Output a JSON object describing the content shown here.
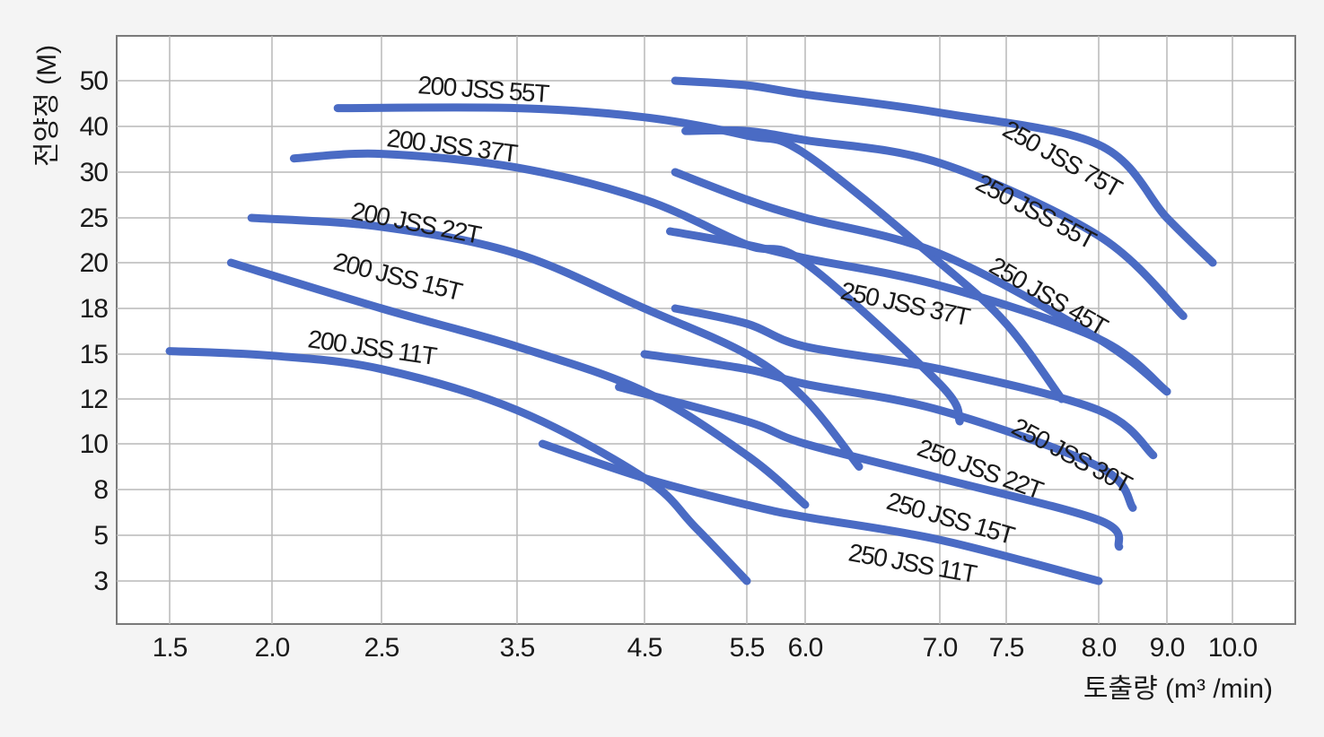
{
  "chart_data": {
    "type": "line",
    "title": "",
    "xlabel": "토출량 (m³ /min)",
    "ylabel": "전양정 (M)",
    "x_ticks": [
      "1.5",
      "2.0",
      "2.5",
      "3.5",
      "4.5",
      "5.5",
      "6.0",
      "7.0",
      "7.5",
      "8.0",
      "9.0",
      "10.0"
    ],
    "y_ticks": [
      "3",
      "5",
      "8",
      "10",
      "12",
      "15",
      "18",
      "20",
      "25",
      "30",
      "40",
      "50"
    ],
    "x_scale": "categorical (tick-indexed, non-linear)",
    "y_scale": "categorical (tick-indexed, non-linear)",
    "grid": true,
    "colors": {
      "series": "#4a6bc4",
      "grid": "#b9b9b9",
      "frame": "#7a7a7a",
      "plot_bg": "#ffffff",
      "page_bg": "#f4f4f4"
    },
    "series": [
      {
        "name": "200 JSS 11T",
        "points": [
          [
            1.5,
            15.2
          ],
          [
            2.0,
            14.9
          ],
          [
            2.5,
            14.0
          ],
          [
            3.5,
            11.5
          ],
          [
            4.5,
            8.5
          ],
          [
            5.0,
            5.5
          ],
          [
            5.5,
            3.0
          ]
        ]
      },
      {
        "name": "200 JSS 15T",
        "points": [
          [
            1.8,
            20.0
          ],
          [
            2.5,
            18.0
          ],
          [
            3.5,
            15.5
          ],
          [
            4.5,
            12.5
          ],
          [
            5.5,
            9.5
          ],
          [
            6.0,
            7.0
          ]
        ]
      },
      {
        "name": "200 JSS 22T",
        "points": [
          [
            1.9,
            25.0
          ],
          [
            2.5,
            24.0
          ],
          [
            3.5,
            21.0
          ],
          [
            4.5,
            18.0
          ],
          [
            5.5,
            15.0
          ],
          [
            6.0,
            12.0
          ],
          [
            6.4,
            9.0
          ]
        ]
      },
      {
        "name": "200 JSS 37T",
        "points": [
          [
            2.1,
            33.0
          ],
          [
            2.5,
            34.0
          ],
          [
            3.5,
            31.0
          ],
          [
            4.5,
            27.0
          ],
          [
            5.5,
            22.0
          ],
          [
            6.0,
            20.0
          ],
          [
            7.0,
            13.0
          ],
          [
            7.15,
            11.0
          ]
        ]
      },
      {
        "name": "200 JSS 55T",
        "points": [
          [
            2.3,
            44.0
          ],
          [
            3.5,
            44.0
          ],
          [
            4.5,
            42.0
          ],
          [
            5.5,
            38.0
          ],
          [
            6.0,
            34.0
          ],
          [
            7.0,
            20.0
          ],
          [
            7.5,
            17.0
          ],
          [
            7.8,
            12.0
          ]
        ]
      },
      {
        "name": "250 JSS 11T",
        "points": [
          [
            3.7,
            10.0
          ],
          [
            4.5,
            8.5
          ],
          [
            5.5,
            7.0
          ],
          [
            6.0,
            6.2
          ],
          [
            7.0,
            4.8
          ],
          [
            8.0,
            3.0
          ]
        ]
      },
      {
        "name": "250 JSS 15T",
        "points": [
          [
            4.3,
            12.8
          ],
          [
            5.5,
            11.0
          ],
          [
            6.0,
            10.0
          ],
          [
            7.0,
            8.5
          ],
          [
            8.0,
            6.0
          ],
          [
            8.3,
            4.5
          ]
        ]
      },
      {
        "name": "250 JSS 22T",
        "points": [
          [
            4.5,
            15.0
          ],
          [
            5.5,
            14.0
          ],
          [
            6.0,
            13.0
          ],
          [
            7.0,
            11.5
          ],
          [
            8.0,
            9.0
          ],
          [
            8.5,
            6.8
          ]
        ]
      },
      {
        "name": "250 JSS 30T",
        "points": [
          [
            4.8,
            18.0
          ],
          [
            5.5,
            17.0
          ],
          [
            6.0,
            15.5
          ],
          [
            7.0,
            14.0
          ],
          [
            8.0,
            11.5
          ],
          [
            8.8,
            9.5
          ]
        ]
      },
      {
        "name": "250 JSS 37T",
        "points": [
          [
            4.75,
            23.5
          ],
          [
            5.5,
            22.0
          ],
          [
            6.0,
            20.5
          ],
          [
            7.0,
            19.0
          ],
          [
            8.0,
            16.0
          ],
          [
            9.0,
            12.5
          ]
        ]
      },
      {
        "name": "250 JSS 45T",
        "points": [
          [
            4.8,
            30.0
          ],
          [
            5.5,
            27.0
          ],
          [
            6.0,
            25.0
          ],
          [
            7.0,
            21.0
          ],
          [
            8.0,
            16.0
          ],
          [
            9.0,
            12.5
          ]
        ]
      },
      {
        "name": "250 JSS 55T",
        "points": [
          [
            4.9,
            39.0
          ],
          [
            5.5,
            39.0
          ],
          [
            6.0,
            37.0
          ],
          [
            7.0,
            32.0
          ],
          [
            8.0,
            23.0
          ],
          [
            9.25,
            17.5
          ]
        ]
      },
      {
        "name": "250 JSS 75T",
        "points": [
          [
            4.8,
            50.0
          ],
          [
            5.5,
            49.0
          ],
          [
            6.0,
            47.0
          ],
          [
            7.0,
            43.0
          ],
          [
            8.0,
            36.0
          ],
          [
            9.0,
            25.0
          ],
          [
            9.7,
            20.0
          ]
        ]
      }
    ]
  }
}
